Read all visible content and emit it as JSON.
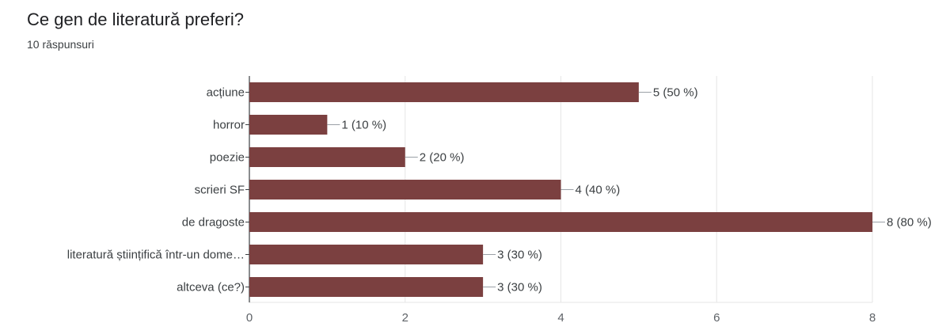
{
  "header": {
    "question": "Ce gen de literatură preferi?",
    "responses": "10 răspunsuri"
  },
  "colors": {
    "bar": "#7b4040",
    "grid": "#e6e6e6",
    "axis": "#3c4043",
    "connector": "#9aa0a6"
  },
  "chart_data": {
    "type": "bar",
    "orientation": "horizontal",
    "categories": [
      "acțiune",
      "horror",
      "poezie",
      "scrieri SF",
      "de dragoste",
      "literatură științifică într-un dome…",
      "altceva (ce?)"
    ],
    "values": [
      5,
      1,
      2,
      4,
      8,
      3,
      3
    ],
    "value_labels": [
      "5 (50 %)",
      "1 (10 %)",
      "2 (20 %)",
      "4 (40 %)",
      "8 (80 %)",
      "3 (30 %)",
      "3 (30 %)"
    ],
    "xlim": [
      0,
      8
    ],
    "xticks": [
      "0",
      "2",
      "4",
      "6",
      "8"
    ],
    "grid": true
  }
}
